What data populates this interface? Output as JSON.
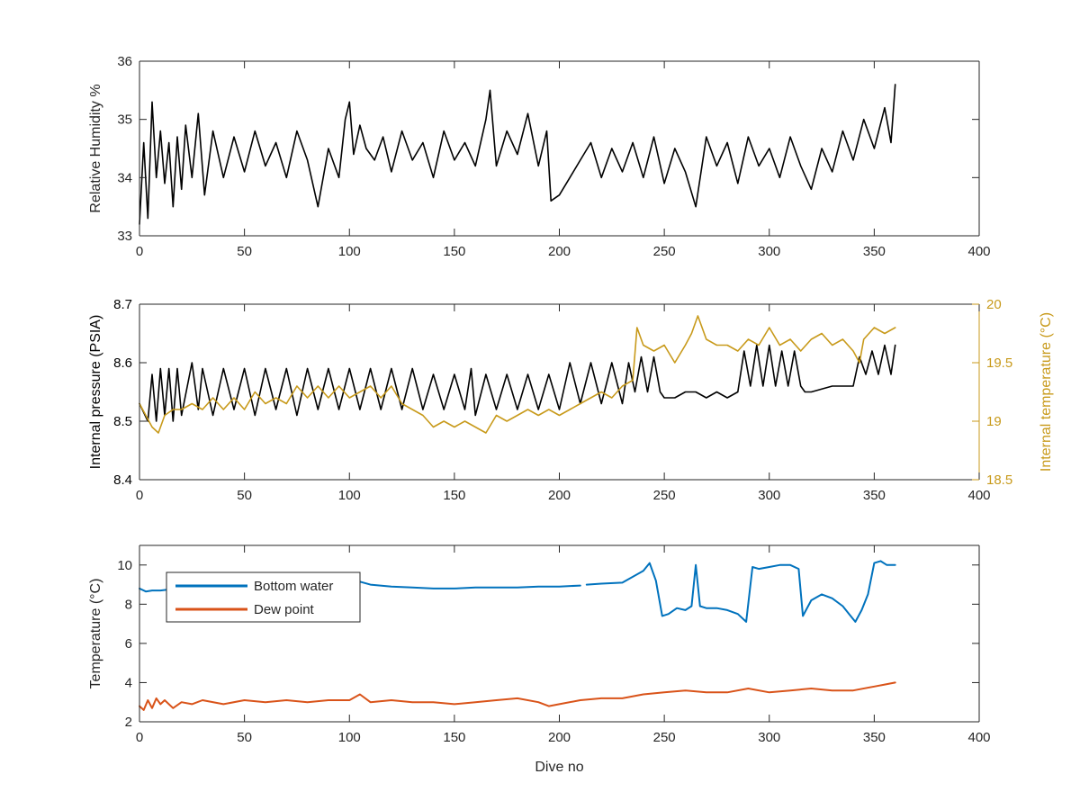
{
  "chart_data": [
    {
      "type": "line",
      "title": "",
      "xlabel": "",
      "ylabel": "Relative Humidity %",
      "xlim": [
        0,
        400
      ],
      "ylim": [
        33,
        36
      ],
      "xticks": [
        "0",
        "50",
        "100",
        "150",
        "200",
        "250",
        "300",
        "350",
        "400"
      ],
      "yticks": [
        "33",
        "34",
        "35",
        "36"
      ],
      "grid": false,
      "series": [
        {
          "color": "#000000",
          "x": [
            0,
            2,
            4,
            6,
            8,
            10,
            12,
            14,
            16,
            18,
            20,
            22,
            25,
            28,
            31,
            35,
            40,
            45,
            50,
            55,
            60,
            65,
            70,
            75,
            80,
            85,
            90,
            95,
            98,
            100,
            102,
            105,
            108,
            112,
            116,
            120,
            125,
            130,
            135,
            140,
            145,
            150,
            155,
            160,
            165,
            167,
            170,
            175,
            180,
            185,
            190,
            194,
            196,
            200,
            205,
            210,
            215,
            220,
            225,
            230,
            235,
            240,
            245,
            250,
            255,
            260,
            265,
            270,
            275,
            280,
            285,
            290,
            295,
            300,
            305,
            310,
            315,
            320,
            325,
            330,
            335,
            340,
            345,
            350,
            355,
            358,
            360
          ],
          "y": [
            33.2,
            34.6,
            33.3,
            35.3,
            34.0,
            34.8,
            33.9,
            34.6,
            33.5,
            34.7,
            33.8,
            34.9,
            34.0,
            35.1,
            33.7,
            34.8,
            34.0,
            34.7,
            34.1,
            34.8,
            34.2,
            34.6,
            34.0,
            34.8,
            34.3,
            33.5,
            34.5,
            34.0,
            35.0,
            35.3,
            34.4,
            34.9,
            34.5,
            34.3,
            34.7,
            34.1,
            34.8,
            34.3,
            34.6,
            34.0,
            34.8,
            34.3,
            34.6,
            34.2,
            35.0,
            35.5,
            34.2,
            34.8,
            34.4,
            35.1,
            34.2,
            34.8,
            33.6,
            33.7,
            34.0,
            34.3,
            34.6,
            34.0,
            34.5,
            34.1,
            34.6,
            34.0,
            34.7,
            33.9,
            34.5,
            34.1,
            33.5,
            34.7,
            34.2,
            34.6,
            33.9,
            34.7,
            34.2,
            34.5,
            34.0,
            34.7,
            34.2,
            33.8,
            34.5,
            34.1,
            34.8,
            34.3,
            35.0,
            34.5,
            35.2,
            34.6,
            35.6
          ]
        }
      ]
    },
    {
      "type": "line",
      "title": "",
      "xlabel": "",
      "ylabel": "Internal pressure (PSIA)",
      "ylabel_right": "Internal temperature (°C)",
      "xlim": [
        0,
        400
      ],
      "ylim": [
        8.4,
        8.7
      ],
      "ylim_right": [
        18.5,
        20
      ],
      "xticks": [
        "0",
        "50",
        "100",
        "150",
        "200",
        "250",
        "300",
        "350",
        "400"
      ],
      "yticks": [
        "8.4",
        "8.5",
        "8.6",
        "8.7"
      ],
      "yticks_right": [
        "18.5",
        "19",
        "19.5",
        "20"
      ],
      "grid": false,
      "series": [
        {
          "color": "#000000",
          "axis": "left",
          "x": [
            0,
            4,
            6,
            8,
            10,
            12,
            14,
            16,
            18,
            20,
            25,
            28,
            30,
            35,
            40,
            45,
            50,
            55,
            60,
            65,
            70,
            75,
            80,
            85,
            90,
            95,
            100,
            105,
            110,
            115,
            120,
            125,
            130,
            135,
            140,
            145,
            150,
            155,
            158,
            160,
            165,
            170,
            175,
            180,
            185,
            190,
            195,
            200,
            205,
            210,
            215,
            220,
            225,
            230,
            233,
            236,
            239,
            242,
            245,
            248,
            250,
            255,
            260,
            265,
            270,
            275,
            280,
            285,
            288,
            291,
            294,
            297,
            300,
            303,
            306,
            309,
            312,
            315,
            317,
            320,
            330,
            340,
            343,
            346,
            349,
            352,
            355,
            358,
            360
          ],
          "y": [
            8.53,
            8.5,
            8.58,
            8.5,
            8.59,
            8.51,
            8.59,
            8.5,
            8.59,
            8.51,
            8.6,
            8.52,
            8.59,
            8.51,
            8.59,
            8.52,
            8.59,
            8.51,
            8.59,
            8.52,
            8.59,
            8.51,
            8.59,
            8.52,
            8.59,
            8.52,
            8.59,
            8.52,
            8.59,
            8.52,
            8.59,
            8.52,
            8.59,
            8.52,
            8.58,
            8.52,
            8.58,
            8.52,
            8.59,
            8.51,
            8.58,
            8.52,
            8.58,
            8.52,
            8.58,
            8.52,
            8.58,
            8.52,
            8.6,
            8.53,
            8.6,
            8.53,
            8.6,
            8.53,
            8.6,
            8.55,
            8.61,
            8.55,
            8.61,
            8.55,
            8.54,
            8.54,
            8.55,
            8.55,
            8.54,
            8.55,
            8.54,
            8.55,
            8.62,
            8.56,
            8.63,
            8.56,
            8.63,
            8.56,
            8.62,
            8.56,
            8.62,
            8.56,
            8.55,
            8.55,
            8.56,
            8.56,
            8.61,
            8.58,
            8.62,
            8.58,
            8.63,
            8.58,
            8.63
          ]
        },
        {
          "color": "#C89A1B",
          "axis": "right",
          "x": [
            0,
            3,
            6,
            9,
            12,
            16,
            20,
            25,
            30,
            35,
            40,
            45,
            50,
            55,
            60,
            65,
            70,
            75,
            80,
            85,
            90,
            95,
            100,
            105,
            110,
            115,
            120,
            125,
            130,
            135,
            140,
            145,
            150,
            155,
            160,
            165,
            170,
            175,
            180,
            185,
            190,
            195,
            200,
            205,
            210,
            215,
            220,
            225,
            230,
            235,
            237,
            240,
            245,
            250,
            255,
            260,
            263,
            266,
            270,
            275,
            280,
            285,
            290,
            295,
            300,
            305,
            310,
            315,
            320,
            325,
            330,
            335,
            340,
            343,
            345,
            350,
            355,
            360
          ],
          "y": [
            19.15,
            19.05,
            18.95,
            18.9,
            19.05,
            19.1,
            19.1,
            19.15,
            19.1,
            19.2,
            19.1,
            19.2,
            19.1,
            19.25,
            19.15,
            19.2,
            19.15,
            19.3,
            19.2,
            19.3,
            19.2,
            19.3,
            19.2,
            19.25,
            19.3,
            19.2,
            19.3,
            19.15,
            19.1,
            19.05,
            18.95,
            19.0,
            18.95,
            19.0,
            18.95,
            18.9,
            19.05,
            19.0,
            19.05,
            19.1,
            19.05,
            19.1,
            19.05,
            19.1,
            19.15,
            19.2,
            19.25,
            19.2,
            19.3,
            19.35,
            19.8,
            19.65,
            19.6,
            19.65,
            19.5,
            19.65,
            19.75,
            19.9,
            19.7,
            19.65,
            19.65,
            19.6,
            19.7,
            19.65,
            19.8,
            19.65,
            19.7,
            19.6,
            19.7,
            19.75,
            19.65,
            19.7,
            19.6,
            19.5,
            19.7,
            19.8,
            19.75,
            19.8
          ]
        }
      ]
    },
    {
      "type": "line",
      "title": "",
      "xlabel": "Dive no",
      "ylabel": "Temperature (°C)",
      "xlim": [
        0,
        400
      ],
      "ylim": [
        2,
        11
      ],
      "xticks": [
        "0",
        "50",
        "100",
        "150",
        "200",
        "250",
        "300",
        "350",
        "400"
      ],
      "yticks": [
        "2",
        "4",
        "6",
        "8",
        "10"
      ],
      "grid": false,
      "legend": "top-left",
      "series": [
        {
          "name": "Bottom water",
          "color": "#0072BD",
          "x": [
            0,
            3,
            6,
            10,
            14,
            20,
            25,
            30,
            35,
            40,
            50,
            60,
            70,
            80,
            90,
            100,
            105,
            110,
            120,
            130,
            140,
            150,
            160,
            170,
            180,
            190,
            200,
            210,
            null,
            213,
            220,
            230,
            240,
            243,
            246,
            249,
            252,
            256,
            260,
            263,
            265,
            267,
            270,
            275,
            280,
            285,
            289,
            292,
            295,
            300,
            305,
            310,
            314,
            316,
            320,
            325,
            330,
            335,
            338,
            341,
            344,
            347,
            350,
            353,
            356,
            360
          ],
          "y": [
            8.8,
            8.65,
            8.7,
            8.7,
            8.75,
            8.8,
            8.85,
            9.0,
            9.0,
            9.05,
            9.05,
            9.1,
            9.1,
            9.1,
            9.1,
            9.1,
            9.15,
            9.0,
            8.9,
            8.85,
            8.8,
            8.8,
            8.85,
            8.85,
            8.85,
            8.9,
            8.9,
            8.95,
            null,
            9.0,
            9.05,
            9.1,
            9.7,
            10.1,
            9.2,
            7.4,
            7.5,
            7.8,
            7.7,
            7.9,
            10.0,
            7.9,
            7.8,
            7.8,
            7.7,
            7.5,
            7.1,
            9.9,
            9.8,
            9.9,
            10.0,
            10.0,
            9.8,
            7.4,
            8.2,
            8.5,
            8.3,
            7.9,
            7.5,
            7.1,
            7.7,
            8.5,
            10.1,
            10.2,
            10.0,
            10.0
          ]
        },
        {
          "name": "Dew point",
          "color": "#D95319",
          "x": [
            0,
            2,
            4,
            6,
            8,
            10,
            12,
            16,
            20,
            25,
            30,
            40,
            50,
            60,
            70,
            80,
            90,
            100,
            105,
            110,
            120,
            130,
            140,
            150,
            160,
            170,
            180,
            190,
            195,
            200,
            210,
            220,
            230,
            240,
            250,
            260,
            270,
            280,
            290,
            300,
            310,
            320,
            330,
            340,
            350,
            355,
            360
          ],
          "y": [
            2.8,
            2.6,
            3.1,
            2.7,
            3.2,
            2.9,
            3.1,
            2.7,
            3.0,
            2.9,
            3.1,
            2.9,
            3.1,
            3.0,
            3.1,
            3.0,
            3.1,
            3.1,
            3.4,
            3.0,
            3.1,
            3.0,
            3.0,
            2.9,
            3.0,
            3.1,
            3.2,
            3.0,
            2.8,
            2.9,
            3.1,
            3.2,
            3.2,
            3.4,
            3.5,
            3.6,
            3.5,
            3.5,
            3.7,
            3.5,
            3.6,
            3.7,
            3.6,
            3.6,
            3.8,
            3.9,
            4.0
          ]
        }
      ]
    }
  ]
}
